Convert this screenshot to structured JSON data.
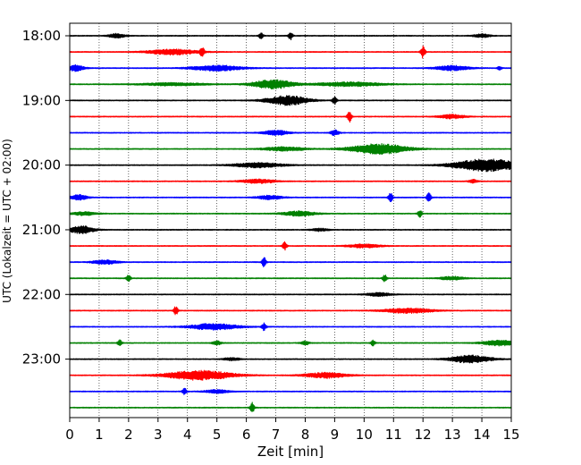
{
  "chart_data": {
    "type": "line",
    "xlabel": "Zeit  [min]",
    "ylabel": "UTC (Lokalzeit = UTC + 02:00)",
    "xlim": [
      0,
      15
    ],
    "x_ticks": [
      "0",
      "1",
      "2",
      "3",
      "4",
      "5",
      "6",
      "7",
      "8",
      "9",
      "10",
      "11",
      "12",
      "13",
      "14",
      "15"
    ],
    "grid": "vertical-dotted",
    "legend": "none",
    "trace_interval_min": 15,
    "colors": [
      "#000000",
      "#ff0000",
      "#0000ff",
      "#008000"
    ],
    "hour_labels": [
      "18:00",
      "19:00",
      "20:00",
      "21:00",
      "22:00",
      "23:00"
    ],
    "traces": [
      {
        "start": "18:00",
        "color": "#000000",
        "events": [
          {
            "t": 1.6,
            "a": 0.3,
            "w": 0.2
          },
          {
            "t": 6.5,
            "a": 0.55,
            "w": 0.05
          },
          {
            "t": 7.5,
            "a": 0.6,
            "w": 0.05
          },
          {
            "t": 14.0,
            "a": 0.25,
            "w": 0.2
          }
        ]
      },
      {
        "start": "18:15",
        "color": "#ff0000",
        "events": [
          {
            "t": 3.5,
            "a": 0.4,
            "w": 0.6
          },
          {
            "t": 4.5,
            "a": 0.7,
            "w": 0.05
          },
          {
            "t": 12.0,
            "a": 0.9,
            "w": 0.05
          }
        ]
      },
      {
        "start": "18:30",
        "color": "#0000ff",
        "events": [
          {
            "t": 0.2,
            "a": 0.45,
            "w": 0.2
          },
          {
            "t": 5.0,
            "a": 0.4,
            "w": 0.6
          },
          {
            "t": 13.0,
            "a": 0.35,
            "w": 0.4
          },
          {
            "t": 14.6,
            "a": 0.3,
            "w": 0.05
          }
        ]
      },
      {
        "start": "18:45",
        "color": "#008000",
        "events": [
          {
            "t": 3.5,
            "a": 0.2,
            "w": 0.8
          },
          {
            "t": 6.9,
            "a": 0.65,
            "w": 0.5
          },
          {
            "t": 9.5,
            "a": 0.3,
            "w": 0.8
          }
        ]
      },
      {
        "start": "19:00",
        "color": "#000000",
        "events": [
          {
            "t": 7.4,
            "a": 0.7,
            "w": 0.5
          },
          {
            "t": 9.0,
            "a": 0.6,
            "w": 0.05
          }
        ]
      },
      {
        "start": "19:15",
        "color": "#ff0000",
        "events": [
          {
            "t": 9.5,
            "a": 0.85,
            "w": 0.05
          },
          {
            "t": 13.0,
            "a": 0.3,
            "w": 0.3
          }
        ]
      },
      {
        "start": "19:30",
        "color": "#0000ff",
        "events": [
          {
            "t": 7.0,
            "a": 0.35,
            "w": 0.3
          },
          {
            "t": 9.0,
            "a": 0.4,
            "w": 0.1
          }
        ]
      },
      {
        "start": "19:45",
        "color": "#008000",
        "events": [
          {
            "t": 7.3,
            "a": 0.3,
            "w": 0.5
          },
          {
            "t": 10.5,
            "a": 0.75,
            "w": 0.7
          }
        ]
      },
      {
        "start": "20:00",
        "color": "#000000",
        "events": [
          {
            "t": 6.4,
            "a": 0.35,
            "w": 0.6
          },
          {
            "t": 14.2,
            "a": 0.9,
            "w": 0.8
          }
        ]
      },
      {
        "start": "20:15",
        "color": "#ff0000",
        "events": [
          {
            "t": 6.4,
            "a": 0.3,
            "w": 0.4
          },
          {
            "t": 13.7,
            "a": 0.25,
            "w": 0.1
          }
        ]
      },
      {
        "start": "20:30",
        "color": "#0000ff",
        "events": [
          {
            "t": 0.3,
            "a": 0.4,
            "w": 0.2
          },
          {
            "t": 6.8,
            "a": 0.3,
            "w": 0.3
          },
          {
            "t": 10.9,
            "a": 0.7,
            "w": 0.05
          },
          {
            "t": 12.2,
            "a": 0.75,
            "w": 0.05
          }
        ]
      },
      {
        "start": "20:45",
        "color": "#008000",
        "events": [
          {
            "t": 0.5,
            "a": 0.25,
            "w": 0.3
          },
          {
            "t": 7.8,
            "a": 0.35,
            "w": 0.4
          },
          {
            "t": 11.9,
            "a": 0.6,
            "w": 0.05
          }
        ]
      },
      {
        "start": "21:00",
        "color": "#000000",
        "events": [
          {
            "t": 0.4,
            "a": 0.55,
            "w": 0.3
          },
          {
            "t": 8.5,
            "a": 0.2,
            "w": 0.2
          }
        ]
      },
      {
        "start": "21:15",
        "color": "#ff0000",
        "events": [
          {
            "t": 7.3,
            "a": 0.6,
            "w": 0.05
          },
          {
            "t": 10.0,
            "a": 0.25,
            "w": 0.4
          }
        ]
      },
      {
        "start": "21:30",
        "color": "#0000ff",
        "events": [
          {
            "t": 1.2,
            "a": 0.3,
            "w": 0.3
          },
          {
            "t": 6.6,
            "a": 0.7,
            "w": 0.05
          }
        ]
      },
      {
        "start": "21:45",
        "color": "#008000",
        "events": [
          {
            "t": 2.0,
            "a": 0.55,
            "w": 0.05
          },
          {
            "t": 10.7,
            "a": 0.5,
            "w": 0.05
          },
          {
            "t": 13.0,
            "a": 0.25,
            "w": 0.3
          }
        ]
      },
      {
        "start": "22:00",
        "color": "#000000",
        "events": [
          {
            "t": 10.5,
            "a": 0.25,
            "w": 0.3
          }
        ]
      },
      {
        "start": "22:15",
        "color": "#ff0000",
        "events": [
          {
            "t": 3.6,
            "a": 0.7,
            "w": 0.05
          },
          {
            "t": 11.5,
            "a": 0.35,
            "w": 0.6
          }
        ]
      },
      {
        "start": "22:30",
        "color": "#0000ff",
        "events": [
          {
            "t": 4.9,
            "a": 0.45,
            "w": 0.6
          },
          {
            "t": 6.6,
            "a": 0.55,
            "w": 0.05
          }
        ]
      },
      {
        "start": "22:45",
        "color": "#008000",
        "events": [
          {
            "t": 1.7,
            "a": 0.55,
            "w": 0.05
          },
          {
            "t": 5.0,
            "a": 0.3,
            "w": 0.1
          },
          {
            "t": 8.0,
            "a": 0.3,
            "w": 0.1
          },
          {
            "t": 10.3,
            "a": 0.4,
            "w": 0.05
          },
          {
            "t": 14.6,
            "a": 0.4,
            "w": 0.4
          }
        ]
      },
      {
        "start": "23:00",
        "color": "#000000",
        "events": [
          {
            "t": 5.5,
            "a": 0.2,
            "w": 0.2
          },
          {
            "t": 13.6,
            "a": 0.55,
            "w": 0.5
          }
        ]
      },
      {
        "start": "23:15",
        "color": "#ff0000",
        "events": [
          {
            "t": 4.4,
            "a": 0.7,
            "w": 0.8
          },
          {
            "t": 8.7,
            "a": 0.4,
            "w": 0.5
          }
        ]
      },
      {
        "start": "23:30",
        "color": "#0000ff",
        "events": [
          {
            "t": 3.9,
            "a": 0.55,
            "w": 0.05
          },
          {
            "t": 5.0,
            "a": 0.25,
            "w": 0.3
          }
        ]
      },
      {
        "start": "23:45",
        "color": "#008000",
        "events": [
          {
            "t": 6.2,
            "a": 0.85,
            "w": 0.05
          }
        ]
      }
    ]
  }
}
